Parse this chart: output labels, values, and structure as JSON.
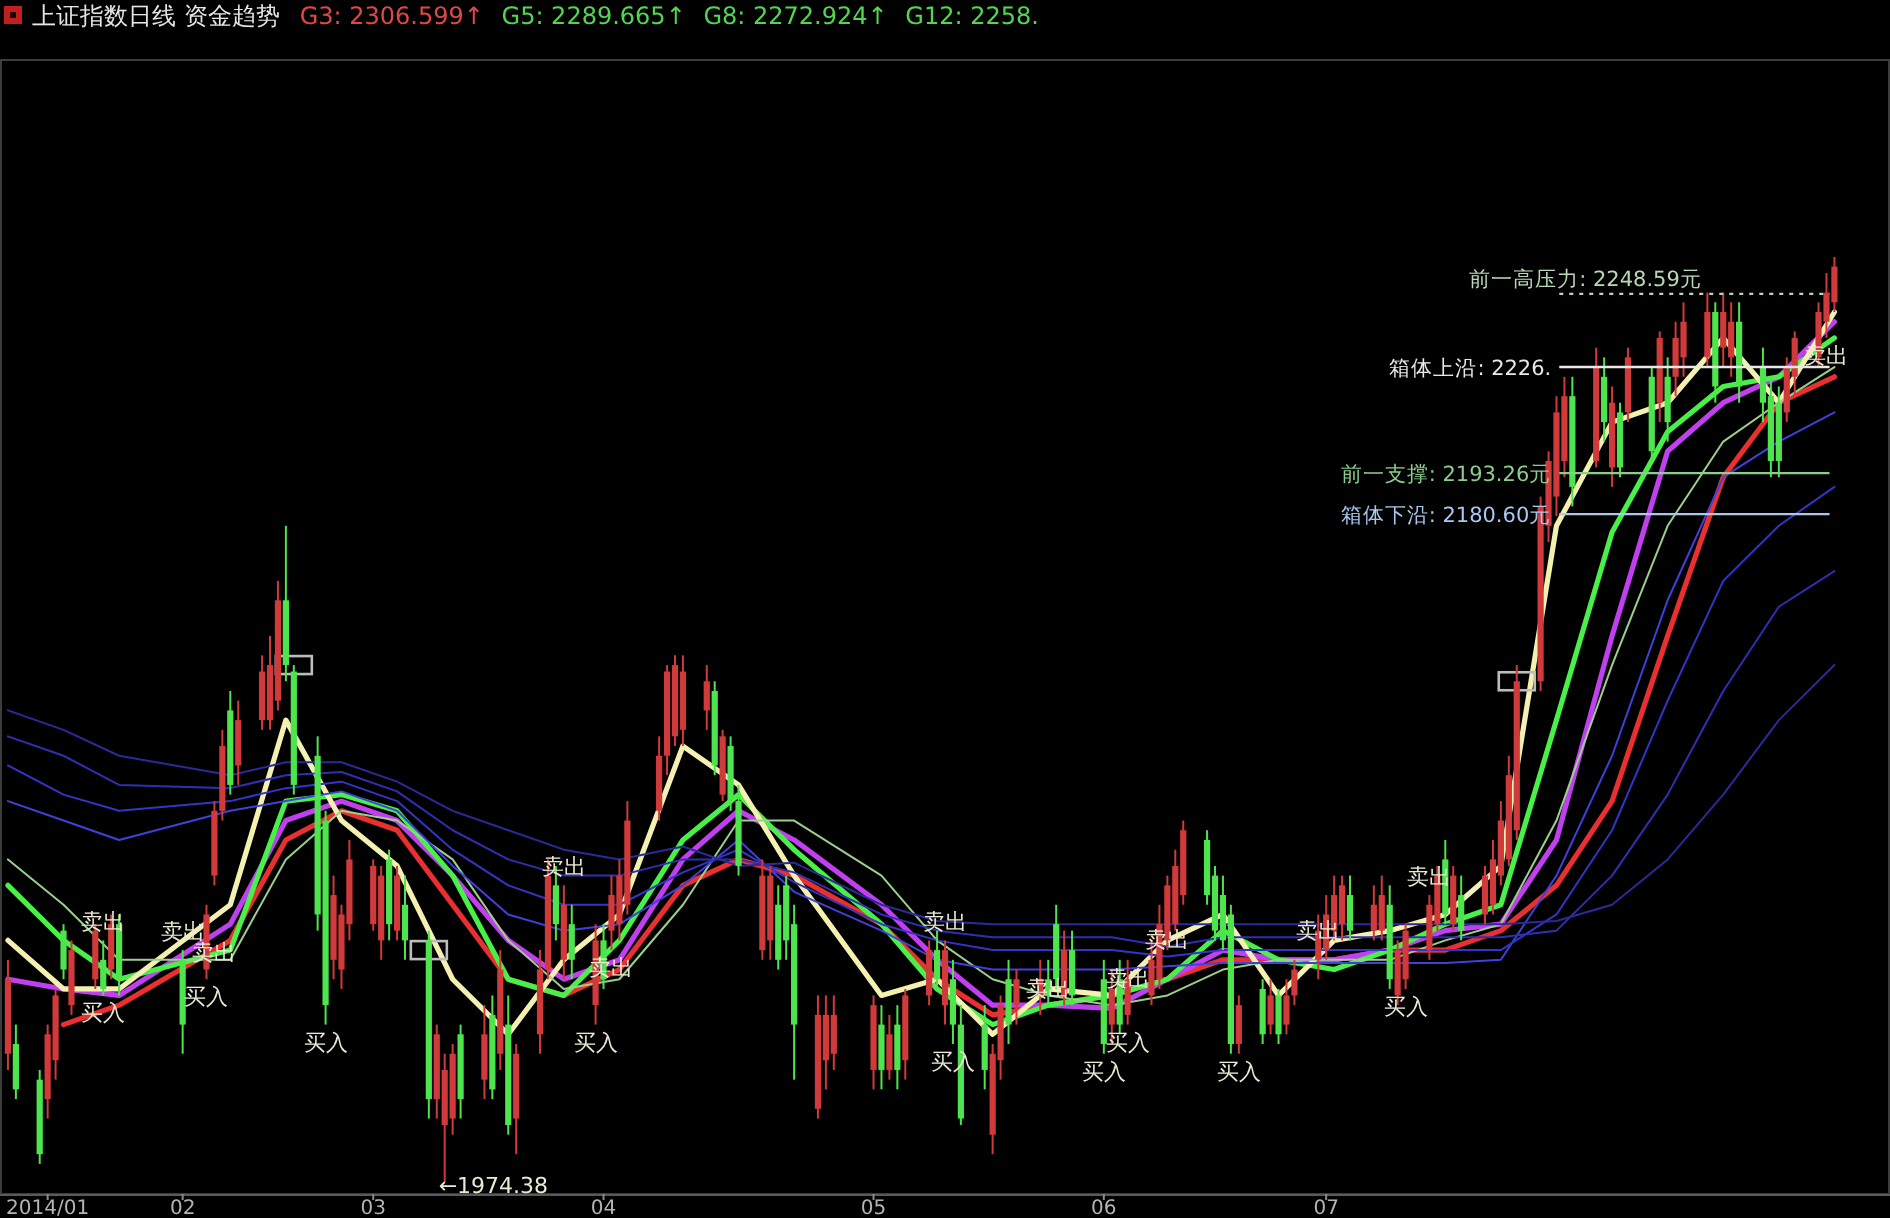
{
  "chart_data": {
    "type": "candlestick",
    "title": "上证指数日线 资金趋势",
    "subtitle": "G3: 2306.599↑  G5: 2289.665↑  G8: 2272.924↑  G12: 2258.",
    "tick_labels": "x",
    "xlim": [
      "2014-01-15",
      "2014-09-10"
    ],
    "ylim": [
      1970.7,
      2320.8
    ],
    "xticks": [
      {
        "value": "2014-01-21",
        "label": "2014/01"
      },
      {
        "value": "2014-02-07",
        "label": "02"
      },
      {
        "value": "2014-03-03",
        "label": "03"
      },
      {
        "value": "2014-04-01",
        "label": "04"
      },
      {
        "value": "2014-05-05",
        "label": "05"
      },
      {
        "value": "2014-06-03",
        "label": "06"
      },
      {
        "value": "2014-07-01",
        "label": "07"
      }
    ],
    "x": [
      "2014-01-16",
      "2014-01-17",
      "2014-01-20",
      "2014-01-21",
      "2014-01-22",
      "2014-01-23",
      "2014-01-24",
      "2014-01-27",
      "2014-01-28",
      "2014-01-29",
      "2014-01-30",
      "2014-02-07",
      "2014-02-10",
      "2014-02-11",
      "2014-02-12",
      "2014-02-13",
      "2014-02-14",
      "2014-02-17",
      "2014-02-18",
      "2014-02-19",
      "2014-02-20",
      "2014-02-21",
      "2014-02-24",
      "2014-02-25",
      "2014-02-26",
      "2014-02-27",
      "2014-02-28",
      "2014-03-03",
      "2014-03-04",
      "2014-03-05",
      "2014-03-06",
      "2014-03-07",
      "2014-03-10",
      "2014-03-11",
      "2014-03-12",
      "2014-03-13",
      "2014-03-14",
      "2014-03-17",
      "2014-03-18",
      "2014-03-19",
      "2014-03-20",
      "2014-03-21",
      "2014-03-24",
      "2014-03-25",
      "2014-03-26",
      "2014-03-27",
      "2014-03-28",
      "2014-03-31",
      "2014-04-01",
      "2014-04-02",
      "2014-04-03",
      "2014-04-04",
      "2014-04-08",
      "2014-04-09",
      "2014-04-10",
      "2014-04-11",
      "2014-04-14",
      "2014-04-15",
      "2014-04-16",
      "2014-04-17",
      "2014-04-18",
      "2014-04-21",
      "2014-04-22",
      "2014-04-23",
      "2014-04-24",
      "2014-04-25",
      "2014-04-28",
      "2014-04-29",
      "2014-04-30",
      "2014-05-05",
      "2014-05-06",
      "2014-05-07",
      "2014-05-08",
      "2014-05-09",
      "2014-05-12",
      "2014-05-13",
      "2014-05-14",
      "2014-05-15",
      "2014-05-16",
      "2014-05-19",
      "2014-05-20",
      "2014-05-21",
      "2014-05-22",
      "2014-05-23",
      "2014-05-26",
      "2014-05-27",
      "2014-05-28",
      "2014-05-29",
      "2014-05-30",
      "2014-06-03",
      "2014-06-04",
      "2014-06-05",
      "2014-06-06",
      "2014-06-09",
      "2014-06-10",
      "2014-06-11",
      "2014-06-12",
      "2014-06-13",
      "2014-06-16",
      "2014-06-17",
      "2014-06-18",
      "2014-06-19",
      "2014-06-20",
      "2014-06-23",
      "2014-06-24",
      "2014-06-25",
      "2014-06-26",
      "2014-06-27",
      "2014-06-30",
      "2014-07-01",
      "2014-07-02",
      "2014-07-03",
      "2014-07-04",
      "2014-07-07",
      "2014-07-08",
      "2014-07-09",
      "2014-07-10",
      "2014-07-11",
      "2014-07-14",
      "2014-07-15",
      "2014-07-16",
      "2014-07-17",
      "2014-07-18",
      "2014-07-21",
      "2014-07-22",
      "2014-07-23",
      "2014-07-24",
      "2014-07-25",
      "2014-07-28",
      "2014-07-29",
      "2014-07-30",
      "2014-07-31",
      "2014-08-01",
      "2014-08-04",
      "2014-08-05",
      "2014-08-06",
      "2014-08-07",
      "2014-08-08",
      "2014-08-11",
      "2014-08-12",
      "2014-08-13",
      "2014-08-14",
      "2014-08-15",
      "2014-08-18",
      "2014-08-19",
      "2014-08-20",
      "2014-08-21",
      "2014-08-22",
      "2014-08-25",
      "2014-08-26",
      "2014-08-27",
      "2014-08-28",
      "2014-08-29",
      "2014-09-01",
      "2014-09-02",
      "2014-09-03"
    ],
    "ohlc": [
      [
        2014,
        2043,
        2009,
        2037
      ],
      [
        2017,
        2023,
        2000,
        2003
      ],
      [
        2006,
        2009,
        1980,
        1983
      ],
      [
        2000,
        2023,
        1994,
        2020
      ],
      [
        2012,
        2034,
        2006,
        2032
      ],
      [
        2052,
        2054,
        2037,
        2040
      ],
      [
        2029,
        2049,
        2026,
        2046
      ],
      [
        2037,
        2054,
        2034,
        2052
      ],
      [
        2043,
        2049,
        2032,
        2034
      ],
      [
        2040,
        2057,
        2037,
        2054
      ],
      [
        2054,
        2057,
        2032,
        2037
      ],
      [
        2043,
        2046,
        2014,
        2023
      ],
      [
        2040,
        2060,
        2037,
        2057
      ],
      [
        2069,
        2092,
        2066,
        2089
      ],
      [
        2089,
        2114,
        2086,
        2109
      ],
      [
        2120,
        2126,
        2094,
        2097
      ],
      [
        2103,
        2123,
        2097,
        2117
      ],
      [
        2117,
        2137,
        2114,
        2132
      ],
      [
        2117,
        2143,
        2114,
        2134
      ],
      [
        2123,
        2160,
        2120,
        2154
      ],
      [
        2154,
        2177,
        2129,
        2134
      ],
      [
        2132,
        2134,
        2094,
        2097
      ],
      [
        2106,
        2112,
        2052,
        2057
      ],
      [
        2086,
        2089,
        2023,
        2029
      ],
      [
        2043,
        2069,
        2037,
        2063
      ],
      [
        2040,
        2060,
        2034,
        2057
      ],
      [
        2054,
        2080,
        2049,
        2074
      ],
      [
        2054,
        2074,
        2052,
        2072
      ],
      [
        2049,
        2072,
        2043,
        2069
      ],
      [
        2074,
        2077,
        2049,
        2054
      ],
      [
        2052,
        2072,
        2049,
        2069
      ],
      [
        2060,
        2069,
        2043,
        2049
      ],
      [
        2049,
        2052,
        1994,
        2000
      ],
      [
        2000,
        2023,
        1994,
        2020
      ],
      [
        1992,
        2014,
        1974.38,
        2009
      ],
      [
        1994,
        2017,
        1989,
        2014
      ],
      [
        2020,
        2023,
        1994,
        2000
      ],
      [
        2006,
        2029,
        2000,
        2020
      ],
      [
        2026,
        2032,
        2000,
        2003
      ],
      [
        2014,
        2046,
        2009,
        2040
      ],
      [
        2023,
        2032,
        1989,
        1992
      ],
      [
        1994,
        2017,
        1983,
        2014
      ],
      [
        2020,
        2046,
        2014,
        2040
      ],
      [
        2040,
        2074,
        2037,
        2069
      ],
      [
        2066,
        2072,
        2049,
        2054
      ],
      [
        2043,
        2066,
        2037,
        2060
      ],
      [
        2054,
        2060,
        2037,
        2043
      ],
      [
        2029,
        2054,
        2023,
        2049
      ],
      [
        2049,
        2054,
        2034,
        2037
      ],
      [
        2052,
        2069,
        2046,
        2063
      ],
      [
        2054,
        2074,
        2049,
        2069
      ],
      [
        2060,
        2092,
        2057,
        2086
      ],
      [
        2089,
        2112,
        2086,
        2106
      ],
      [
        2106,
        2134,
        2100,
        2132
      ],
      [
        2112,
        2137,
        2109,
        2134
      ],
      [
        2114,
        2137,
        2109,
        2132
      ],
      [
        2120,
        2134,
        2114,
        2129
      ],
      [
        2126,
        2129,
        2100,
        2103
      ],
      [
        2094,
        2114,
        2092,
        2112
      ],
      [
        2109,
        2112,
        2089,
        2092
      ],
      [
        2092,
        2097,
        2069,
        2072
      ],
      [
        2046,
        2074,
        2043,
        2069
      ],
      [
        2049,
        2072,
        2043,
        2069
      ],
      [
        2060,
        2066,
        2040,
        2043
      ],
      [
        2066,
        2069,
        2043,
        2049
      ],
      [
        2054,
        2060,
        2006,
        2023
      ],
      [
        1997,
        2032,
        1994,
        2026
      ],
      [
        2012,
        2032,
        2003,
        2026
      ],
      [
        2014,
        2032,
        2009,
        2026
      ],
      [
        2009,
        2032,
        2003,
        2029
      ],
      [
        2023,
        2029,
        2003,
        2009
      ],
      [
        2009,
        2026,
        2006,
        2020
      ],
      [
        2023,
        2029,
        2003,
        2009
      ],
      [
        2012,
        2034,
        2006,
        2032
      ],
      [
        2032,
        2049,
        2029,
        2046
      ],
      [
        2046,
        2052,
        2034,
        2037
      ],
      [
        2029,
        2049,
        2023,
        2046
      ],
      [
        2037,
        2043,
        2017,
        2023
      ],
      [
        2023,
        2029,
        1992,
        1994
      ],
      [
        2023,
        2029,
        2003,
        2009
      ],
      [
        1989,
        2017,
        1983,
        2014
      ],
      [
        2012,
        2032,
        2006,
        2029
      ],
      [
        2037,
        2043,
        2017,
        2023
      ],
      [
        2029,
        2040,
        2023,
        2037
      ],
      [
        2032,
        2043,
        2026,
        2037
      ],
      [
        2037,
        2043,
        2029,
        2032
      ],
      [
        2054,
        2060,
        2034,
        2037
      ],
      [
        2032,
        2052,
        2029,
        2046
      ],
      [
        2046,
        2052,
        2029,
        2032
      ],
      [
        2037,
        2043,
        2014,
        2017
      ],
      [
        2023,
        2040,
        2017,
        2034
      ],
      [
        2037,
        2043,
        2020,
        2023
      ],
      [
        2026,
        2043,
        2023,
        2037
      ],
      [
        2032,
        2049,
        2029,
        2043
      ],
      [
        2037,
        2060,
        2034,
        2054
      ],
      [
        2049,
        2069,
        2046,
        2066
      ],
      [
        2054,
        2077,
        2052,
        2072
      ],
      [
        2063,
        2086,
        2060,
        2083
      ],
      [
        2080,
        2083,
        2060,
        2063
      ],
      [
        2069,
        2072,
        2049,
        2052
      ],
      [
        2063,
        2069,
        2046,
        2049
      ],
      [
        2057,
        2060,
        2014,
        2017
      ],
      [
        2017,
        2032,
        2014,
        2029
      ],
      [
        2034,
        2037,
        2017,
        2020
      ],
      [
        2023,
        2037,
        2020,
        2032
      ],
      [
        2032,
        2034,
        2017,
        2020
      ],
      [
        2023,
        2037,
        2020,
        2032
      ],
      [
        2032,
        2043,
        2029,
        2040
      ],
      [
        2043,
        2057,
        2037,
        2052
      ],
      [
        2046,
        2063,
        2043,
        2057
      ],
      [
        2052,
        2069,
        2049,
        2063
      ],
      [
        2054,
        2069,
        2049,
        2066
      ],
      [
        2063,
        2069,
        2049,
        2052
      ],
      [
        2052,
        2066,
        2049,
        2060
      ],
      [
        2052,
        2069,
        2049,
        2063
      ],
      [
        2060,
        2066,
        2034,
        2037
      ],
      [
        2032,
        2049,
        2029,
        2046
      ],
      [
        2037,
        2054,
        2034,
        2052
      ],
      [
        2046,
        2063,
        2043,
        2060
      ],
      [
        2054,
        2072,
        2052,
        2069
      ],
      [
        2074,
        2080,
        2054,
        2057
      ],
      [
        2054,
        2072,
        2052,
        2069
      ],
      [
        2063,
        2069,
        2049,
        2052
      ],
      [
        2057,
        2072,
        2054,
        2069
      ],
      [
        2060,
        2080,
        2057,
        2074
      ],
      [
        2069,
        2092,
        2066,
        2086
      ],
      [
        2074,
        2106,
        2072,
        2100
      ],
      [
        2083,
        2134,
        2080,
        2129
      ],
      [
        2129,
        2186,
        2126,
        2183
      ],
      [
        2177,
        2200,
        2172,
        2197
      ],
      [
        2186,
        2217,
        2180,
        2212
      ],
      [
        2197,
        2223,
        2192,
        2217
      ],
      [
        2217,
        2223,
        2183,
        2189
      ],
      [
        2197,
        2232,
        2195,
        2226
      ],
      [
        2223,
        2229,
        2203,
        2209
      ],
      [
        2195,
        2220,
        2189,
        2215
      ],
      [
        2212,
        2215,
        2192,
        2195
      ],
      [
        2212,
        2232,
        2209,
        2229
      ],
      [
        2223,
        2226,
        2197,
        2200
      ],
      [
        2215,
        2237,
        2209,
        2235
      ],
      [
        2223,
        2229,
        2203,
        2209
      ],
      [
        2223,
        2240,
        2217,
        2235
      ],
      [
        2229,
        2246,
        2223,
        2240
      ],
      [
        2229,
        2249,
        2226,
        2243
      ],
      [
        2243,
        2246,
        2215,
        2220
      ],
      [
        2232,
        2249,
        2226,
        2243
      ],
      [
        2229,
        2246,
        2223,
        2240
      ],
      [
        2240,
        2246,
        2215,
        2220
      ],
      [
        2226,
        2232,
        2209,
        2215
      ],
      [
        2217,
        2223,
        2192,
        2197
      ],
      [
        2215,
        2220,
        2192,
        2197
      ],
      [
        2212,
        2229,
        2209,
        2226
      ],
      [
        2223,
        2237,
        2217,
        2235
      ],
      [
        2229,
        2246,
        2226,
        2243
      ],
      [
        2240,
        2255,
        2235,
        2249
      ],
      [
        2246,
        2260,
        2243,
        2257
      ]
    ],
    "series": [
      {
        "type": "line",
        "color": "#e83030",
        "x": [
          "2014-01-23",
          "2014-01-30",
          "2014-02-13",
          "2014-02-20",
          "2014-02-27",
          "2014-03-06",
          "2014-03-13",
          "2014-03-20",
          "2014-03-27",
          "2014-04-03",
          "2014-04-11",
          "2014-04-18",
          "2014-04-25",
          "2014-05-06",
          "2014-05-13",
          "2014-05-20",
          "2014-05-27",
          "2014-06-04",
          "2014-06-11",
          "2014-06-18",
          "2014-06-25",
          "2014-07-02",
          "2014-07-09",
          "2014-07-16",
          "2014-07-23",
          "2014-07-30",
          "2014-08-06",
          "2014-08-13",
          "2014-08-20",
          "2014-08-27",
          "2014-09-03"
        ],
        "values": [
          2023,
          2029,
          2049,
          2080,
          2089,
          2083,
          2060,
          2037,
          2032,
          2040,
          2066,
          2074,
          2069,
          2054,
          2037,
          2026,
          2029,
          2032,
          2037,
          2043,
          2043,
          2043,
          2046,
          2046,
          2052,
          2066,
          2092,
          2143,
          2192,
          2215,
          2223
        ]
      },
      {
        "type": "line",
        "color": "#c040f0",
        "x": [
          "2014-01-16",
          "2014-01-23",
          "2014-01-30",
          "2014-02-13",
          "2014-02-20",
          "2014-02-27",
          "2014-03-06",
          "2014-03-13",
          "2014-03-20",
          "2014-03-27",
          "2014-04-03",
          "2014-04-11",
          "2014-04-18",
          "2014-04-25",
          "2014-05-06",
          "2014-05-13",
          "2014-05-20",
          "2014-05-27",
          "2014-06-04",
          "2014-06-11",
          "2014-06-18",
          "2014-06-25",
          "2014-07-02",
          "2014-07-09",
          "2014-07-16",
          "2014-07-23",
          "2014-07-30",
          "2014-08-06",
          "2014-08-13",
          "2014-08-20",
          "2014-08-27",
          "2014-09-03"
        ],
        "values": [
          2037,
          2034,
          2032,
          2054,
          2086,
          2092,
          2086,
          2069,
          2049,
          2037,
          2043,
          2074,
          2089,
          2080,
          2060,
          2043,
          2029,
          2029,
          2028,
          2037,
          2046,
          2043,
          2043,
          2046,
          2052,
          2054,
          2080,
          2143,
          2200,
          2215,
          2223,
          2240
        ]
      },
      {
        "type": "line",
        "color": "#48f048",
        "x": [
          "2014-01-16",
          "2014-01-23",
          "2014-01-30",
          "2014-02-13",
          "2014-02-20",
          "2014-02-27",
          "2014-03-06",
          "2014-03-13",
          "2014-03-20",
          "2014-03-27",
          "2014-04-03",
          "2014-04-11",
          "2014-04-18",
          "2014-04-25",
          "2014-05-06",
          "2014-05-13",
          "2014-05-20",
          "2014-05-27",
          "2014-06-04",
          "2014-06-11",
          "2014-06-18",
          "2014-06-25",
          "2014-07-02",
          "2014-07-09",
          "2014-07-16",
          "2014-07-23",
          "2014-07-30",
          "2014-08-06",
          "2014-08-13",
          "2014-08-20",
          "2014-08-27",
          "2014-09-03"
        ],
        "values": [
          2066,
          2049,
          2037,
          2046,
          2092,
          2094,
          2089,
          2069,
          2037,
          2032,
          2049,
          2080,
          2094,
          2077,
          2054,
          2034,
          2023,
          2029,
          2032,
          2037,
          2052,
          2043,
          2040,
          2046,
          2054,
          2060,
          2117,
          2175,
          2206,
          2220,
          2223,
          2235
        ]
      },
      {
        "type": "line",
        "color": "#f4f0b0",
        "x": [
          "2014-01-16",
          "2014-01-23",
          "2014-01-30",
          "2014-02-13",
          "2014-02-20",
          "2014-02-27",
          "2014-03-06",
          "2014-03-13",
          "2014-03-20",
          "2014-03-27",
          "2014-04-03",
          "2014-04-11",
          "2014-04-18",
          "2014-04-25",
          "2014-05-06",
          "2014-05-13",
          "2014-05-20",
          "2014-05-27",
          "2014-06-04",
          "2014-06-11",
          "2014-06-18",
          "2014-06-25",
          "2014-07-02",
          "2014-07-09",
          "2014-07-16",
          "2014-07-23",
          "2014-07-30",
          "2014-08-06",
          "2014-08-13",
          "2014-08-20",
          "2014-08-27",
          "2014-09-03"
        ],
        "values": [
          2049,
          2034,
          2034,
          2060,
          2117,
          2086,
          2072,
          2037,
          2020,
          2043,
          2057,
          2109,
          2097,
          2069,
          2032,
          2037,
          2020,
          2034,
          2032,
          2049,
          2057,
          2032,
          2049,
          2052,
          2057,
          2072,
          2177,
          2209,
          2215,
          2235,
          2215,
          2243
        ]
      },
      {
        "type": "line",
        "color": "#9ccf8c",
        "x": [
          "2014-01-16",
          "2014-01-23",
          "2014-01-30",
          "2014-02-13",
          "2014-02-20",
          "2014-02-27",
          "2014-03-06",
          "2014-03-13",
          "2014-03-20",
          "2014-03-27",
          "2014-04-03",
          "2014-04-11",
          "2014-04-18",
          "2014-04-25",
          "2014-05-06",
          "2014-05-13",
          "2014-05-20",
          "2014-05-27",
          "2014-06-04",
          "2014-06-11",
          "2014-06-18",
          "2014-06-25",
          "2014-07-02",
          "2014-07-09",
          "2014-07-16",
          "2014-07-23",
          "2014-07-30",
          "2014-08-06",
          "2014-08-13",
          "2014-08-20",
          "2014-08-27",
          "2014-09-03"
        ],
        "values": [
          2074,
          2060,
          2043,
          2043,
          2074,
          2089,
          2086,
          2074,
          2049,
          2034,
          2037,
          2060,
          2086,
          2086,
          2069,
          2049,
          2037,
          2032,
          2029,
          2032,
          2040,
          2043,
          2043,
          2043,
          2049,
          2054,
          2086,
          2134,
          2177,
          2203,
          2215,
          2226
        ]
      },
      {
        "type": "line",
        "color": "#4040dc",
        "x": [
          "2014-01-16",
          "2014-01-23",
          "2014-01-30",
          "2014-02-13",
          "2014-02-20",
          "2014-02-27",
          "2014-03-06",
          "2014-03-13",
          "2014-03-20",
          "2014-03-27",
          "2014-04-03",
          "2014-04-11",
          "2014-04-18",
          "2014-04-25",
          "2014-05-06",
          "2014-05-13",
          "2014-05-20",
          "2014-05-27",
          "2014-06-04",
          "2014-06-11",
          "2014-06-18",
          "2014-06-25",
          "2014-07-02",
          "2014-07-09",
          "2014-07-16",
          "2014-07-23",
          "2014-07-30",
          "2014-08-06",
          "2014-08-13",
          "2014-08-20",
          "2014-08-27",
          "2014-09-03"
        ],
        "values": [
          2092,
          2086,
          2080,
          2089,
          2092,
          2095,
          2089,
          2072,
          2057,
          2052,
          2054,
          2066,
          2080,
          2064,
          2052,
          2043,
          2040,
          2040,
          2040,
          2041,
          2042,
          2042,
          2042,
          2042,
          2042,
          2043,
          2069,
          2106,
          2154,
          2192,
          2203,
          2212
        ]
      },
      {
        "type": "line",
        "color": "#3434c8",
        "x": [
          "2014-01-16",
          "2014-01-23",
          "2014-01-30",
          "2014-02-13",
          "2014-02-20",
          "2014-02-27",
          "2014-03-06",
          "2014-03-13",
          "2014-03-20",
          "2014-03-27",
          "2014-04-03",
          "2014-04-11",
          "2014-04-18",
          "2014-04-25",
          "2014-05-06",
          "2014-05-13",
          "2014-05-20",
          "2014-05-27",
          "2014-06-04",
          "2014-06-11",
          "2014-06-18",
          "2014-06-25",
          "2014-07-02",
          "2014-07-09",
          "2014-07-16",
          "2014-07-23",
          "2014-07-30",
          "2014-08-06",
          "2014-08-13",
          "2014-08-20",
          "2014-08-27",
          "2014-09-03"
        ],
        "values": [
          2103,
          2094,
          2089,
          2092,
          2096,
          2098,
          2092,
          2077,
          2066,
          2060,
          2060,
          2070,
          2077,
          2067,
          2054,
          2049,
          2046,
          2046,
          2046,
          2044,
          2046,
          2046,
          2046,
          2046,
          2046,
          2046,
          2057,
          2083,
          2123,
          2160,
          2177,
          2189
        ]
      },
      {
        "type": "line",
        "color": "#2f2fb4",
        "x": [
          "2014-01-16",
          "2014-01-23",
          "2014-01-30",
          "2014-02-13",
          "2014-02-20",
          "2014-02-27",
          "2014-03-06",
          "2014-03-13",
          "2014-03-20",
          "2014-03-27",
          "2014-04-03",
          "2014-04-11",
          "2014-04-18",
          "2014-04-25",
          "2014-05-06",
          "2014-05-13",
          "2014-05-20",
          "2014-05-27",
          "2014-06-04",
          "2014-06-11",
          "2014-06-18",
          "2014-06-25",
          "2014-07-02",
          "2014-07-09",
          "2014-07-16",
          "2014-07-23",
          "2014-07-30",
          "2014-08-06",
          "2014-08-13",
          "2014-08-20",
          "2014-08-27",
          "2014-09-03"
        ],
        "values": [
          2112,
          2106,
          2097,
          2096,
          2100,
          2101,
          2095,
          2083,
          2074,
          2069,
          2069,
          2074,
          2074,
          2070,
          2057,
          2052,
          2050,
          2050,
          2050,
          2047,
          2050,
          2050,
          2050,
          2050,
          2050,
          2050,
          2052,
          2069,
          2094,
          2126,
          2152,
          2163
        ]
      },
      {
        "type": "line",
        "color": "#2a2a9a",
        "x": [
          "2014-01-16",
          "2014-01-23",
          "2014-01-30",
          "2014-02-13",
          "2014-02-20",
          "2014-02-27",
          "2014-03-06",
          "2014-03-13",
          "2014-03-20",
          "2014-03-27",
          "2014-04-03",
          "2014-04-11",
          "2014-04-18",
          "2014-04-25",
          "2014-05-06",
          "2014-05-13",
          "2014-05-20",
          "2014-05-27",
          "2014-06-04",
          "2014-06-11",
          "2014-06-18",
          "2014-06-25",
          "2014-07-02",
          "2014-07-09",
          "2014-07-16",
          "2014-07-23",
          "2014-07-30",
          "2014-08-06",
          "2014-08-13",
          "2014-08-20",
          "2014-08-27",
          "2014-09-03"
        ],
        "values": [
          2120,
          2114,
          2106,
          2100,
          2104,
          2104,
          2098,
          2089,
          2083,
          2077,
          2074,
          2078,
          2072,
          2073,
          2060,
          2055,
          2054,
          2054,
          2054,
          2054,
          2054,
          2054,
          2054,
          2054,
          2054,
          2054,
          2055,
          2060,
          2074,
          2094,
          2117,
          2134
        ]
      },
      {
        "type": "scatter",
        "marker": "square",
        "color": "#bcbcbc",
        "x": [
          "2014-02-21",
          "2014-03-10",
          "2014-07-25"
        ],
        "values": [
          2134,
          2046,
          2129
        ]
      }
    ],
    "ref_lines": [
      {
        "axis": "y",
        "value": 2248.59,
        "label": "前一高压力: 2248.59元",
        "color": "#b8d8b8",
        "line_style": "dotted"
      },
      {
        "axis": "y",
        "value": 2226,
        "label": "箱体上沿: 2226.",
        "color": "#e8e8e8"
      },
      {
        "axis": "y",
        "value": 2193.26,
        "label": "前一支撑: 2193.26元",
        "color": "#8ccc8c"
      },
      {
        "axis": "y",
        "value": 2180.6,
        "label": "箱体下沿: 2180.60元",
        "color": "#a8c8f0"
      }
    ],
    "annotations": [
      {
        "text": "卖出",
        "x": "2014-01-28",
        "y": 2049
      },
      {
        "text": "卖出",
        "x": "2014-02-07",
        "y": 2046
      },
      {
        "text": "卖出",
        "x": "2014-02-11",
        "y": 2045
      },
      {
        "text": "卖出",
        "x": "2014-03-27",
        "y": 2066
      },
      {
        "text": "卖出",
        "x": "2014-04-02",
        "y": 2046
      },
      {
        "text": "卖出",
        "x": "2014-05-14",
        "y": 2049
      },
      {
        "text": "卖出",
        "x": "2014-05-27",
        "y": 2034
      },
      {
        "text": "卖出",
        "x": "2014-06-06",
        "y": 2037
      },
      {
        "text": "卖出",
        "x": "2014-06-11",
        "y": 2049
      },
      {
        "text": "卖出",
        "x": "2014-06-30",
        "y": 2052
      },
      {
        "text": "卖出",
        "x": "2014-07-14",
        "y": 2063
      },
      {
        "text": "卖出",
        "x": "2014-09-02",
        "y": 2235
      },
      {
        "text": "买入",
        "x": "2014-01-28",
        "y": 2032
      },
      {
        "text": "买入",
        "x": "2014-02-10",
        "y": 2037
      },
      {
        "text": "买入",
        "x": "2014-02-25",
        "y": 2023
      },
      {
        "text": "买入",
        "x": "2014-03-31",
        "y": 2023
      },
      {
        "text": "买入",
        "x": "2014-05-15",
        "y": 2017
      },
      {
        "text": "买入",
        "x": "2014-06-06",
        "y": 2023
      },
      {
        "text": "买入",
        "x": "2014-06-03",
        "y": 2014
      },
      {
        "text": "买入",
        "x": "2014-06-20",
        "y": 2014
      },
      {
        "text": "买入",
        "x": "2014-07-11",
        "y": 2034
      },
      {
        "text": "←1974.38",
        "x": "2014-03-12",
        "y": 1974.38
      }
    ]
  }
}
